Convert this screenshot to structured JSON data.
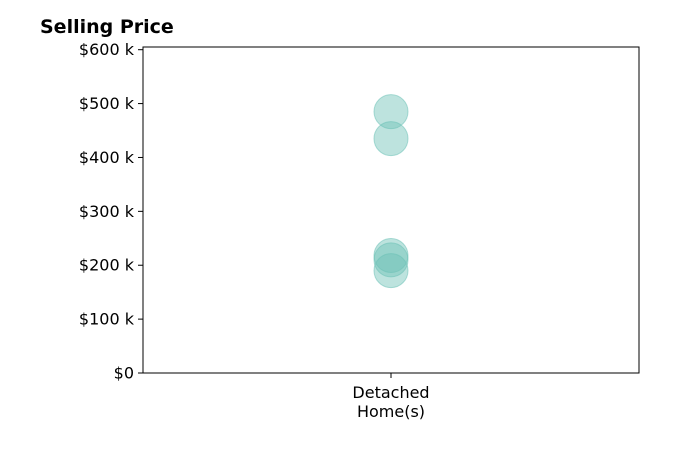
{
  "chart_data": {
    "type": "scatter",
    "title": "Selling Price",
    "xlabel": "",
    "ylabel": "",
    "categories": [
      "Detached\nHome(s)"
    ],
    "y_ticks": [
      {
        "value": 0,
        "label": "$0"
      },
      {
        "value": 100000,
        "label": "$100 k"
      },
      {
        "value": 200000,
        "label": "$200 k"
      },
      {
        "value": 300000,
        "label": "$300 k"
      },
      {
        "value": 400000,
        "label": "$400 k"
      },
      {
        "value": 500000,
        "label": "$500 k"
      },
      {
        "value": 600000,
        "label": "$600 k"
      }
    ],
    "ylim": [
      0,
      605000
    ],
    "grid": false,
    "series": [
      {
        "color": "#6cc1b6",
        "points": [
          {
            "x": "Detached\nHome(s)",
            "y": 485000
          },
          {
            "x": "Detached\nHome(s)",
            "y": 435000
          },
          {
            "x": "Detached\nHome(s)",
            "y": 218000
          },
          {
            "x": "Detached\nHome(s)",
            "y": 210000
          },
          {
            "x": "Detached\nHome(s)",
            "y": 190000
          }
        ]
      }
    ]
  }
}
